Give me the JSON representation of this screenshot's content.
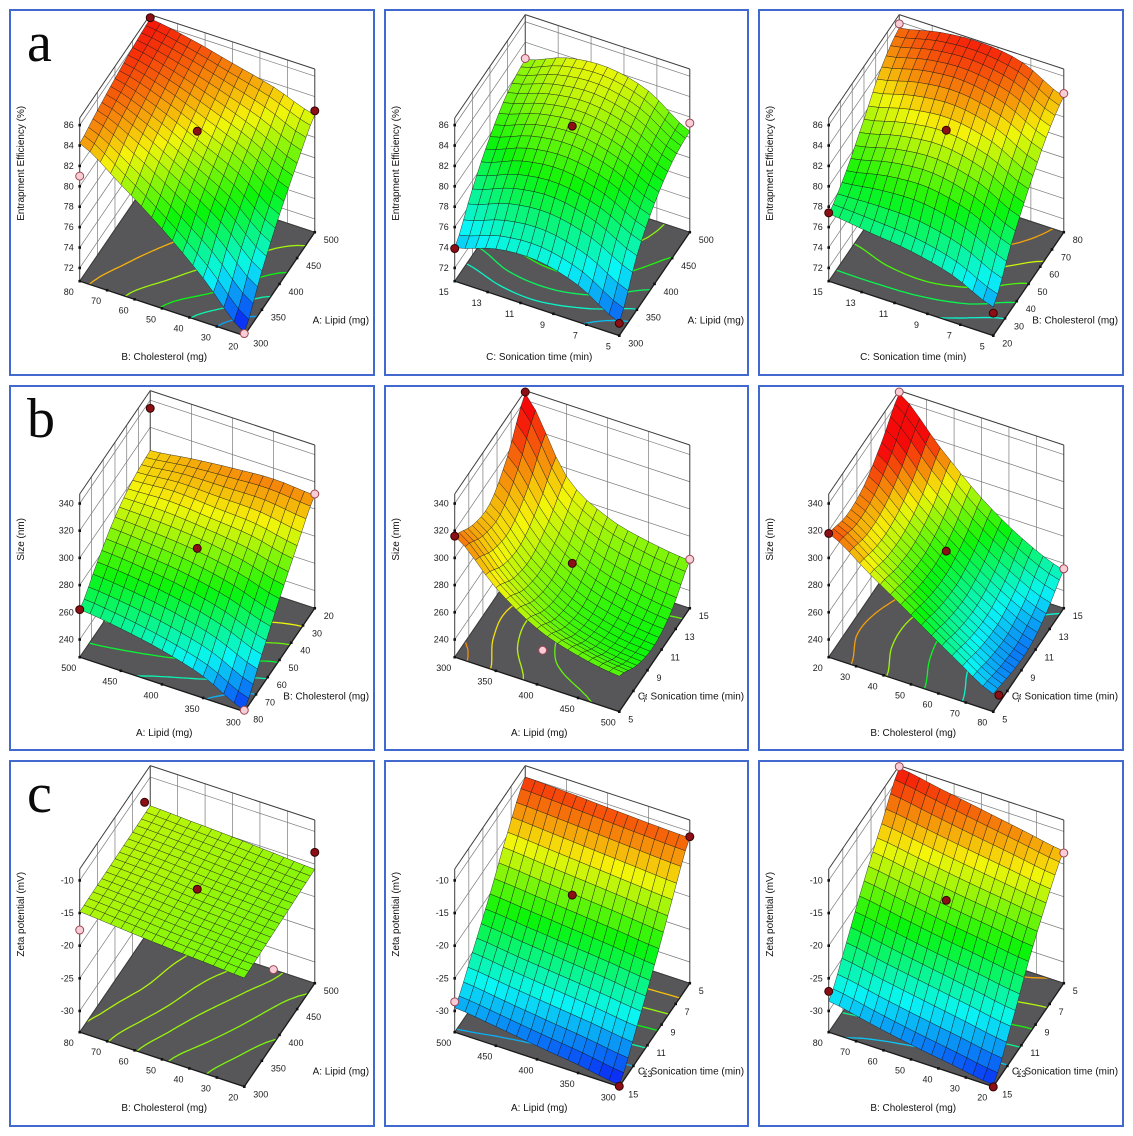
{
  "figure": {
    "row_labels": [
      "a",
      "b",
      "c"
    ],
    "border_color": "#4169cf",
    "floor_color": "#57575a",
    "background": "#ffffff",
    "point_colors": {
      "above": {
        "fill": "#8b0f14",
        "stroke": "#310305"
      },
      "below": {
        "fill": "#f9cdd6",
        "stroke": "#9c4654"
      }
    }
  },
  "chart_data": [
    {
      "id": "a1",
      "type": "surface3d",
      "row": "a",
      "zlabel": "Entrapment Efficiency  (%)",
      "zticks": [
        72,
        74,
        76,
        78,
        80,
        82,
        84,
        86
      ],
      "left_axis": {
        "label": "B: Cholesterol (mg)",
        "ticks": [
          20,
          30,
          40,
          50,
          60,
          70,
          80
        ]
      },
      "right_axis": {
        "label": "A: Lipid  (mg)",
        "ticks": [
          300,
          350,
          400,
          450,
          500
        ]
      },
      "color_range": [
        71,
        86.5
      ],
      "surface": [
        [
          71.0,
          74.5,
          77.5,
          80.0,
          82.2
        ],
        [
          75.0,
          78.0,
          80.2,
          82.0,
          83.6
        ],
        [
          78.5,
          80.6,
          82.2,
          83.6,
          84.6
        ],
        [
          81.5,
          83.0,
          84.1,
          85.0,
          85.6
        ],
        [
          84.2,
          84.9,
          85.5,
          86.0,
          86.3
        ]
      ],
      "points": [
        {
          "u": 1,
          "v": 1,
          "z": 86.4,
          "kind": "above"
        },
        {
          "u": 0,
          "v": 1,
          "z": 82.6,
          "kind": "above"
        },
        {
          "u": 0.5,
          "v": 0.5,
          "z": 83.0,
          "kind": "above"
        },
        {
          "u": 1,
          "v": 0,
          "z": 81.0,
          "kind": "below"
        },
        {
          "u": 0,
          "v": 0,
          "z": 70.9,
          "kind": "below"
        }
      ]
    },
    {
      "id": "a2",
      "type": "surface3d",
      "row": "a",
      "zlabel": "Entrapment Efficiency  (%)",
      "zticks": [
        72,
        74,
        76,
        78,
        80,
        82,
        84,
        86
      ],
      "left_axis": {
        "label": "C: Sonication time (min)",
        "ticks": [
          5,
          7,
          9,
          11,
          13,
          15
        ]
      },
      "right_axis": {
        "label": "A: Lipid  (mg)",
        "ticks": [
          300,
          350,
          400,
          450,
          500
        ]
      },
      "color_range": [
        70.5,
        89
      ],
      "surface": [
        [
          72.0,
          76.0,
          78.6,
          80.1,
          80.6
        ],
        [
          74.3,
          78.0,
          80.6,
          82.2,
          83.2
        ],
        [
          75.4,
          79.0,
          81.6,
          83.2,
          84.2
        ],
        [
          75.2,
          78.6,
          81.2,
          82.8,
          83.8
        ],
        [
          74.0,
          77.2,
          79.8,
          81.6,
          82.3
        ]
      ],
      "points": [
        {
          "u": 1,
          "v": 0,
          "z": 73.9,
          "kind": "above"
        },
        {
          "u": 0,
          "v": 0,
          "z": 71.9,
          "kind": "above"
        },
        {
          "u": 0.5,
          "v": 0.5,
          "z": 83.5,
          "kind": "above"
        },
        {
          "u": 0,
          "v": 1,
          "z": 81.4,
          "kind": "below"
        },
        {
          "u": 1,
          "v": 1,
          "z": 82.4,
          "kind": "below"
        }
      ]
    },
    {
      "id": "a3",
      "type": "surface3d",
      "row": "a",
      "zlabel": "Entrapment Efficiency  (%)",
      "zticks": [
        72,
        74,
        76,
        78,
        80,
        82,
        84,
        86
      ],
      "left_axis": {
        "label": "C: Sonication time (min)",
        "ticks": [
          5,
          7,
          9,
          11,
          13,
          15
        ]
      },
      "right_axis": {
        "label": "B: Cholesterol (mg)",
        "ticks": [
          20,
          30,
          40,
          50,
          60,
          70,
          80
        ]
      },
      "color_range": [
        71,
        87
      ],
      "surface": [
        [
          73.5,
          77.0,
          80.0,
          82.5,
          84.0
        ],
        [
          75.3,
          79.0,
          82.0,
          84.5,
          86.0
        ],
        [
          76.3,
          80.0,
          82.9,
          85.4,
          86.6
        ],
        [
          76.8,
          79.8,
          82.5,
          85.1,
          86.3
        ],
        [
          77.3,
          79.0,
          81.5,
          84.1,
          85.4
        ]
      ],
      "points": [
        {
          "u": 1,
          "v": 0,
          "z": 77.4,
          "kind": "above"
        },
        {
          "u": 0.5,
          "v": 0.5,
          "z": 83.1,
          "kind": "above"
        },
        {
          "u": 0,
          "v": 0,
          "z": 72.9,
          "kind": "above"
        },
        {
          "u": 1,
          "v": 1,
          "z": 85.8,
          "kind": "below"
        },
        {
          "u": 0,
          "v": 1,
          "z": 84.3,
          "kind": "below"
        }
      ]
    },
    {
      "id": "b1",
      "type": "surface3d",
      "row": "b",
      "zlabel": "Size (nm)",
      "zticks": [
        240,
        260,
        280,
        300,
        320,
        340
      ],
      "left_axis": {
        "label": "A: Lipid  (mg)",
        "ticks": [
          300,
          350,
          400,
          450,
          500
        ]
      },
      "right_axis": {
        "label": "B: Cholesterol (mg)",
        "ticks": [
          80,
          70,
          60,
          50,
          40,
          30,
          20
        ]
      },
      "color_range": [
        224,
        324
      ],
      "surface": [
        [
          228,
          250,
          272,
          292,
          310
        ],
        [
          243,
          262,
          281,
          298,
          312
        ],
        [
          252,
          270,
          287,
          300,
          310
        ],
        [
          258,
          275,
          290,
          302,
          307
        ],
        [
          262,
          278,
          292,
          300,
          303
        ]
      ],
      "points": [
        {
          "u": 1,
          "v": 1,
          "z": 334,
          "kind": "above"
        },
        {
          "u": 1,
          "v": 0,
          "z": 262,
          "kind": "above"
        },
        {
          "u": 0.5,
          "v": 0.5,
          "z": 289,
          "kind": "above"
        },
        {
          "u": 0,
          "v": 1,
          "z": 311,
          "kind": "below"
        },
        {
          "u": 0,
          "v": 0,
          "z": 228,
          "kind": "below"
        }
      ]
    },
    {
      "id": "b2",
      "type": "surface3d",
      "row": "b",
      "zlabel": "Size (nm)",
      "zticks": [
        240,
        260,
        280,
        300,
        320,
        340
      ],
      "left_axis": {
        "label": "A: Lipid  (mg)",
        "ticks": [
          500,
          450,
          400,
          350,
          300
        ]
      },
      "right_axis": {
        "label": "C: Sonication time (min)",
        "ticks": [
          5,
          7,
          9,
          11,
          13,
          15
        ]
      },
      "color_range": [
        140,
        336
      ],
      "surface": [
        [
          253,
          242,
          238,
          245,
          262
        ],
        [
          258,
          246,
          242,
          250,
          266
        ],
        [
          268,
          256,
          252,
          260,
          274
        ],
        [
          288,
          276,
          272,
          280,
          294
        ],
        [
          316,
          305,
          302,
          318,
          345
        ]
      ],
      "points": [
        {
          "u": 1,
          "v": 0,
          "z": 316,
          "kind": "above"
        },
        {
          "u": 1,
          "v": 1,
          "z": 346,
          "kind": "above"
        },
        {
          "u": 0.5,
          "v": 0.5,
          "z": 278,
          "kind": "above"
        },
        {
          "u": 0.5,
          "v": 0.08,
          "z": 246,
          "kind": "below"
        },
        {
          "u": 0,
          "v": 1,
          "z": 263,
          "kind": "below"
        }
      ]
    },
    {
      "id": "b3",
      "type": "surface3d",
      "row": "b",
      "zlabel": "Size (nm)",
      "zticks": [
        240,
        260,
        280,
        300,
        320,
        340
      ],
      "left_axis": {
        "label": "B: Cholesterol (mg)",
        "ticks": [
          80,
          70,
          60,
          50,
          40,
          30,
          20
        ]
      },
      "right_axis": {
        "label": "C: Sonication time (min)",
        "ticks": [
          5,
          7,
          9,
          11,
          13,
          15
        ]
      },
      "color_range": [
        224,
        324
      ],
      "surface": [
        [
          240,
          236,
          235,
          242,
          255
        ],
        [
          258,
          252,
          250,
          256,
          268
        ],
        [
          278,
          272,
          270,
          276,
          288
        ],
        [
          298,
          292,
          292,
          300,
          315
        ],
        [
          318,
          312,
          315,
          328,
          345
        ]
      ],
      "points": [
        {
          "u": 1,
          "v": 0,
          "z": 318,
          "kind": "above"
        },
        {
          "u": 0.5,
          "v": 0.5,
          "z": 287,
          "kind": "above"
        },
        {
          "u": 0,
          "v": 0.08,
          "z": 233,
          "kind": "above"
        },
        {
          "u": 0,
          "v": 1,
          "z": 256,
          "kind": "below"
        },
        {
          "u": 1,
          "v": 1,
          "z": 346,
          "kind": "below"
        }
      ]
    },
    {
      "id": "c1",
      "type": "surface3d",
      "row": "c",
      "zlabel": "Zeta potential (mV)",
      "zticks": [
        -30,
        -25,
        -20,
        -15,
        -10
      ],
      "left_axis": {
        "label": "B: Cholesterol (mg)",
        "ticks": [
          20,
          30,
          40,
          50,
          60,
          70,
          80
        ]
      },
      "right_axis": {
        "label": "A: Lipid  (mg)",
        "ticks": [
          300,
          350,
          400,
          450,
          500
        ]
      },
      "color_range": [
        -33,
        -6
      ],
      "surface": [
        [
          -16.6,
          -16.4,
          -16.2,
          -16.0,
          -15.8
        ],
        [
          -16.2,
          -16.0,
          -15.8,
          -15.6,
          -15.4
        ],
        [
          -15.8,
          -15.6,
          -15.4,
          -15.2,
          -15.0
        ],
        [
          -15.3,
          -15.1,
          -14.9,
          -14.8,
          -14.7
        ],
        [
          -14.8,
          -14.7,
          -14.6,
          -14.5,
          -14.4
        ]
      ],
      "points": [
        {
          "u": 1,
          "v": 0.92,
          "z": -12.6,
          "kind": "above"
        },
        {
          "u": 0,
          "v": 1,
          "z": -13.2,
          "kind": "above"
        },
        {
          "u": 0.5,
          "v": 0.5,
          "z": -15.1,
          "kind": "above"
        },
        {
          "u": 1,
          "v": 0,
          "z": -17.6,
          "kind": "below"
        },
        {
          "u": 0.08,
          "v": 0.6,
          "z": -25.5,
          "kind": "below"
        }
      ]
    },
    {
      "id": "c2",
      "type": "surface3d",
      "row": "c",
      "zlabel": "Zeta potential (mV)",
      "zticks": [
        -30,
        -25,
        -20,
        -15,
        -10
      ],
      "left_axis": {
        "label": "A: Lipid  (mg)",
        "ticks": [
          300,
          350,
          400,
          450,
          500
        ]
      },
      "right_axis": {
        "label": "C: Sonication time (min)",
        "ticks": [
          15,
          13,
          11,
          9,
          7,
          5
        ]
      },
      "color_range": [
        -33.5,
        -9
      ],
      "surface": [
        [
          -33.0,
          -28.0,
          -22.5,
          -16.5,
          -11.0
        ],
        [
          -32.0,
          -27.2,
          -21.8,
          -16.0,
          -10.8
        ],
        [
          -31.2,
          -26.5,
          -21.2,
          -15.5,
          -10.5
        ],
        [
          -30.3,
          -25.8,
          -20.6,
          -15.0,
          -10.2
        ],
        [
          -29.5,
          -25.0,
          -20.0,
          -14.5,
          -10.0
        ]
      ],
      "points": [
        {
          "u": 0,
          "v": 1,
          "z": -10.8,
          "kind": "above"
        },
        {
          "u": 0.5,
          "v": 0.5,
          "z": -16.0,
          "kind": "above"
        },
        {
          "u": 0,
          "v": 0,
          "z": -33.2,
          "kind": "above"
        },
        {
          "u": 1,
          "v": 0,
          "z": -28.6,
          "kind": "below"
        }
      ]
    },
    {
      "id": "c3",
      "type": "surface3d",
      "row": "c",
      "zlabel": "Zeta potential (mV)",
      "zticks": [
        -30,
        -25,
        -20,
        -15,
        -10
      ],
      "left_axis": {
        "label": "B: Cholesterol (mg)",
        "ticks": [
          20,
          30,
          40,
          50,
          60,
          70,
          80
        ]
      },
      "right_axis": {
        "label": "C: Sonication time (min)",
        "ticks": [
          15,
          13,
          11,
          9,
          7,
          5
        ]
      },
      "color_range": [
        -34,
        -8.5
      ],
      "surface": [
        [
          -33.0,
          -28.0,
          -22.0,
          -17.0,
          -13.0
        ],
        [
          -32.0,
          -26.9,
          -21.1,
          -16.1,
          -11.9
        ],
        [
          -31.0,
          -25.8,
          -20.2,
          -15.2,
          -10.8
        ],
        [
          -29.8,
          -24.7,
          -19.1,
          -14.2,
          -9.7
        ],
        [
          -28.5,
          -23.5,
          -18.0,
          -13.2,
          -8.6
        ]
      ],
      "points": [
        {
          "u": 1,
          "v": 0,
          "z": -27.0,
          "kind": "above"
        },
        {
          "u": 0.5,
          "v": 0.5,
          "z": -16.8,
          "kind": "above"
        },
        {
          "u": 0,
          "v": 0,
          "z": -33.3,
          "kind": "above"
        },
        {
          "u": 0,
          "v": 1,
          "z": -13.3,
          "kind": "below"
        },
        {
          "u": 1,
          "v": 1,
          "z": -8.4,
          "kind": "below"
        }
      ]
    }
  ]
}
